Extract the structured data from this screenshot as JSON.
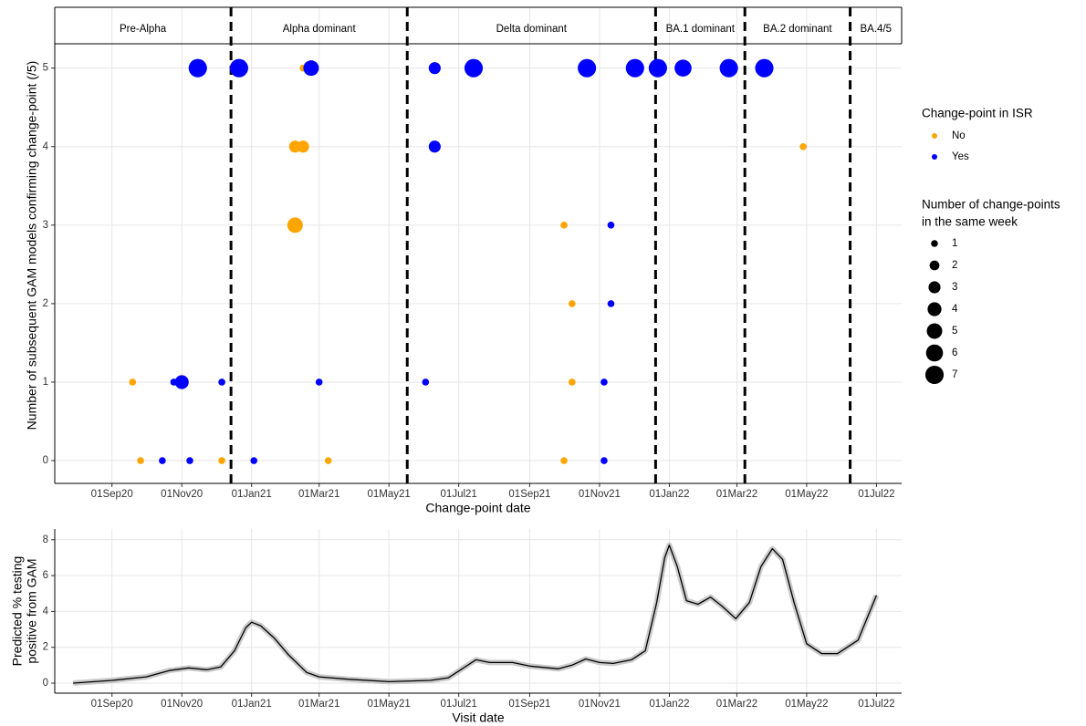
{
  "chart_data": [
    {
      "type": "scatter",
      "y_label": "Number of subsequent GAM models confirming change-point (/5)",
      "x_label": "Change-point date",
      "xlim": [
        "2020-07-13",
        "2022-07-23"
      ],
      "xticks": [
        {
          "value": "2020-09-01",
          "label": "01Sep20"
        },
        {
          "value": "2020-11-01",
          "label": "01Nov20"
        },
        {
          "value": "2021-01-01",
          "label": "01Jan21"
        },
        {
          "value": "2021-03-01",
          "label": "01Mar21"
        },
        {
          "value": "2021-05-01",
          "label": "01May21"
        },
        {
          "value": "2021-07-01",
          "label": "01Jul21"
        },
        {
          "value": "2021-09-01",
          "label": "01Sep21"
        },
        {
          "value": "2021-11-01",
          "label": "01Nov21"
        },
        {
          "value": "2022-01-01",
          "label": "01Jan22"
        },
        {
          "value": "2022-03-01",
          "label": "01Mar22"
        },
        {
          "value": "2022-05-01",
          "label": "01May22"
        },
        {
          "value": "2022-07-01",
          "label": "01Jul22"
        }
      ],
      "ylim": [
        -0.29,
        5.31
      ],
      "yticks": [
        0,
        1,
        2,
        3,
        4,
        5
      ],
      "grid": true,
      "phases": [
        "Pre-Alpha",
        "Alpha dominant",
        "Delta dominant",
        "BA.1 dominant",
        "BA.2 dominant",
        "BA.4/5"
      ],
      "boundaries": [
        "2020-12-14",
        "2021-05-17",
        "2021-12-20",
        "2022-03-08",
        "2022-06-08"
      ],
      "legend_title": "Change-point in ISR",
      "size_legend_title": [
        "Number of change-points",
        "in the same week"
      ],
      "size_legend": [
        1,
        2,
        3,
        4,
        5,
        6,
        7
      ],
      "series": [
        {
          "name": "No",
          "color": "#FFA500",
          "x": [
            "2020-09-19",
            "2020-09-26",
            "2020-12-06",
            "2021-02-15",
            "2021-02-08",
            "2021-02-15",
            "2021-02-08",
            "2021-03-09",
            "2021-10-01",
            "2021-10-08",
            "2021-10-08",
            "2021-10-01",
            "2022-04-28"
          ],
          "values": [
            1,
            0,
            0,
            5,
            4,
            4,
            3,
            0,
            3,
            2,
            1,
            0,
            4
          ],
          "sizes": [
            1,
            1,
            1,
            1,
            3,
            3,
            5,
            1,
            1,
            1,
            1,
            1,
            1
          ]
        },
        {
          "name": "Yes",
          "color": "#0000FF",
          "x": [
            "2020-11-15",
            "2020-12-21",
            "2021-02-22",
            "2021-06-10",
            "2021-07-14",
            "2021-10-21",
            "2021-12-02",
            "2021-12-22",
            "2022-01-13",
            "2022-02-22",
            "2022-03-25",
            "2021-06-10",
            "2021-11-11",
            "2021-11-11",
            "2020-10-25",
            "2020-11-01",
            "2020-12-06",
            "2021-03-01",
            "2021-06-02",
            "2021-11-05",
            "2020-10-15",
            "2020-11-08",
            "2021-01-03",
            "2021-11-05"
          ],
          "values": [
            5,
            5,
            5,
            5,
            5,
            5,
            5,
            5,
            5,
            5,
            5,
            4,
            3,
            2,
            1,
            1,
            1,
            1,
            1,
            1,
            0,
            0,
            0,
            0
          ],
          "sizes": [
            7,
            7,
            5,
            3,
            7,
            7,
            7,
            7,
            6,
            7,
            7,
            3,
            1,
            1,
            1,
            4,
            1,
            1,
            1,
            1,
            1,
            1,
            1,
            1
          ]
        }
      ]
    },
    {
      "type": "line",
      "y_label": [
        "Predicted % testing",
        "positive from GAM"
      ],
      "x_label": "Visit date",
      "xlim": [
        "2020-07-13",
        "2022-07-23"
      ],
      "xticks": [
        {
          "value": "2020-09-01",
          "label": "01Sep20"
        },
        {
          "value": "2020-11-01",
          "label": "01Nov20"
        },
        {
          "value": "2021-01-01",
          "label": "01Jan21"
        },
        {
          "value": "2021-03-01",
          "label": "01Mar21"
        },
        {
          "value": "2021-05-01",
          "label": "01May21"
        },
        {
          "value": "2021-07-01",
          "label": "01Jul21"
        },
        {
          "value": "2021-09-01",
          "label": "01Sep21"
        },
        {
          "value": "2021-11-01",
          "label": "01Nov21"
        },
        {
          "value": "2022-01-01",
          "label": "01Jan22"
        },
        {
          "value": "2022-03-01",
          "label": "01Mar22"
        },
        {
          "value": "2022-05-01",
          "label": "01May22"
        },
        {
          "value": "2022-07-01",
          "label": "01Jul22"
        }
      ],
      "ylim": [
        -0.56,
        8.6
      ],
      "yticks": [
        0,
        2,
        4,
        6,
        8
      ],
      "grid": true,
      "color": "#000000",
      "x": [
        "2020-07-29",
        "2020-09-01",
        "2020-10-01",
        "2020-10-21",
        "2020-11-07",
        "2020-11-23",
        "2020-12-05",
        "2020-12-17",
        "2020-12-27",
        "2021-01-01",
        "2021-01-09",
        "2021-01-21",
        "2021-02-02",
        "2021-02-18",
        "2021-03-01",
        "2021-03-26",
        "2021-05-01",
        "2021-06-06",
        "2021-06-22",
        "2021-07-04",
        "2021-07-16",
        "2021-07-28",
        "2021-08-17",
        "2021-09-01",
        "2021-09-26",
        "2021-10-08",
        "2021-10-20",
        "2021-11-01",
        "2021-11-13",
        "2021-11-29",
        "2021-12-11",
        "2021-12-21",
        "2021-12-28",
        "2022-01-01",
        "2022-01-08",
        "2022-01-16",
        "2022-01-26",
        "2022-02-06",
        "2022-02-16",
        "2022-02-28",
        "2022-03-12",
        "2022-03-22",
        "2022-04-01",
        "2022-04-10",
        "2022-04-20",
        "2022-05-01",
        "2022-05-14",
        "2022-05-28",
        "2022-06-15",
        "2022-07-01"
      ],
      "values": [
        0,
        0.15,
        0.35,
        0.7,
        0.85,
        0.75,
        0.9,
        1.8,
        3.1,
        3.4,
        3.2,
        2.5,
        1.6,
        0.6,
        0.35,
        0.22,
        0.08,
        0.15,
        0.3,
        0.8,
        1.3,
        1.15,
        1.15,
        0.95,
        0.8,
        1.0,
        1.35,
        1.15,
        1.1,
        1.3,
        1.8,
        4.5,
        7.0,
        7.7,
        6.5,
        4.6,
        4.4,
        4.8,
        4.3,
        3.6,
        4.5,
        6.5,
        7.5,
        6.9,
        4.5,
        2.2,
        1.65,
        1.65,
        2.4,
        4.9
      ]
    }
  ]
}
